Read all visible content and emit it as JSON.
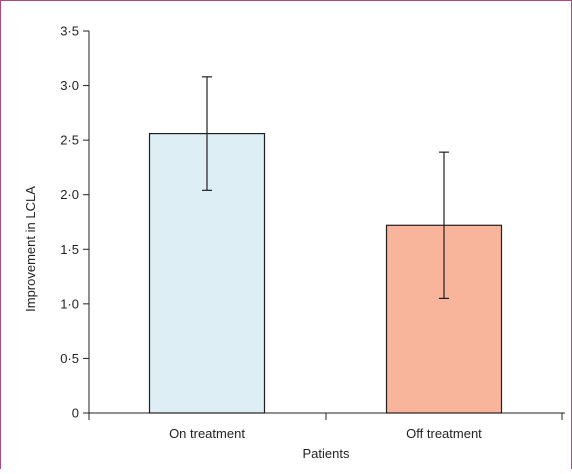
{
  "chart_data": {
    "type": "bar",
    "title": "",
    "xlabel": "Patients",
    "ylabel": "Improvement in LCLA",
    "categories": [
      "On treatment",
      "Off treatment"
    ],
    "values": [
      2.56,
      1.72
    ],
    "error_low": [
      2.04,
      1.05
    ],
    "error_high": [
      3.08,
      2.39
    ],
    "ylim": [
      0,
      3.5
    ],
    "yticks": [
      0,
      0.5,
      1.0,
      1.5,
      2.0,
      2.5,
      3.0,
      3.5
    ],
    "ytick_labels": [
      "0",
      "0·5",
      "1·0",
      "1·5",
      "2·0",
      "2·5",
      "3·0",
      "3·5"
    ],
    "colors": {
      "bar_fills": [
        "#ddeef5",
        "#f8b59c"
      ],
      "bar_stroke": "#231f20",
      "axis": "#231f20",
      "frame_border": "#b0477f"
    },
    "grid": false,
    "legend": "none"
  }
}
